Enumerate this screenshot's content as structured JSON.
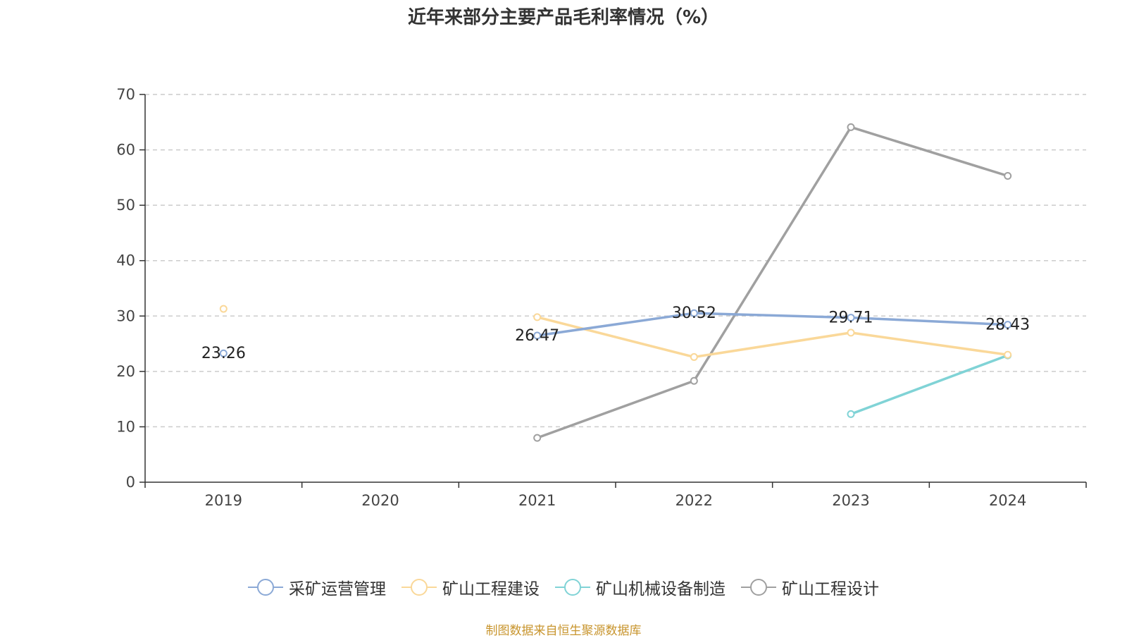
{
  "chart_data": {
    "type": "line",
    "title": "近年来部分主要产品毛利率情况（%）",
    "categories": [
      "2019",
      "2020",
      "2021",
      "2022",
      "2023",
      "2024"
    ],
    "ylim": [
      0,
      70
    ],
    "yticks": [
      0,
      10,
      20,
      30,
      40,
      50,
      60,
      70
    ],
    "grid": true,
    "legend_position": "bottom",
    "series": [
      {
        "name": "采矿运营管理",
        "color": "#8ba9d6",
        "values": [
          23.26,
          null,
          26.47,
          30.52,
          29.71,
          28.43
        ],
        "labels": [
          "23.26",
          "",
          "26.47",
          "30.52",
          "29.71",
          "28.43"
        ]
      },
      {
        "name": "矿山工程建设",
        "color": "#fad899",
        "values": [
          31.3,
          null,
          29.8,
          22.6,
          27.0,
          23.0
        ],
        "labels": []
      },
      {
        "name": "矿山机械设备制造",
        "color": "#80d3d6",
        "values": [
          null,
          null,
          null,
          null,
          12.3,
          22.9
        ],
        "labels": []
      },
      {
        "name": "矿山工程设计",
        "color": "#a0a0a0",
        "values": [
          null,
          null,
          8.0,
          18.3,
          64.1,
          55.3
        ],
        "labels": []
      }
    ]
  },
  "source": "制图数据来自恒生聚源数据库"
}
